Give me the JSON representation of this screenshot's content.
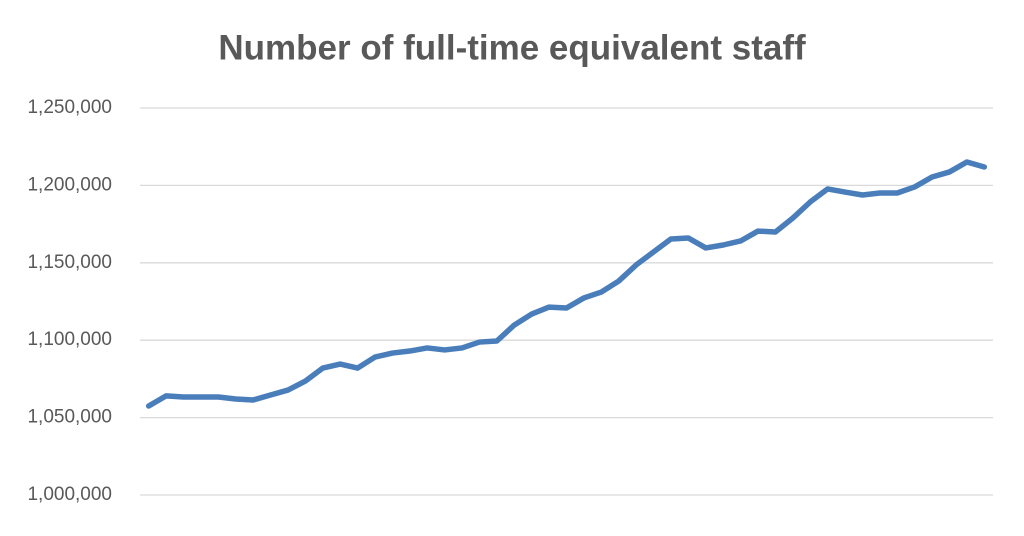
{
  "chart_data": {
    "type": "line",
    "title": "Number of full-time equivalent staff",
    "categories": [
      null,
      null,
      null,
      null,
      null,
      null,
      null,
      null,
      null,
      null,
      null,
      null,
      null,
      null,
      null,
      null,
      null,
      null,
      null,
      null,
      null,
      null,
      null,
      null,
      null,
      null,
      null,
      null,
      null,
      null,
      null,
      null,
      null,
      null,
      null,
      null,
      null,
      null,
      null,
      null,
      null,
      null,
      null,
      null,
      null,
      null,
      null,
      null,
      null
    ],
    "series": [
      {
        "color": "#4a7ebb",
        "values": [
          1057500,
          1064000,
          1063300,
          1063300,
          1063300,
          1062000,
          1061400,
          1064600,
          1067800,
          1073600,
          1082000,
          1084600,
          1082000,
          1089100,
          1091700,
          1093000,
          1095000,
          1093700,
          1095000,
          1098800,
          1099500,
          1109800,
          1116900,
          1121400,
          1120800,
          1127300,
          1131100,
          1138200,
          1148600,
          1157000,
          1165400,
          1166000,
          1159600,
          1161500,
          1164100,
          1170500,
          1169900,
          1178900,
          1189300,
          1197700,
          1195700,
          1193800,
          1195100,
          1195100,
          1199000,
          1205400,
          1208700,
          1215100,
          1211900
        ]
      }
    ],
    "ylim": [
      1000000,
      1250000
    ],
    "yticks": [
      {
        "value": 1000000,
        "label": "1,000,000"
      },
      {
        "value": 1050000,
        "label": "1,050,000"
      },
      {
        "value": 1100000,
        "label": "1,100,000"
      },
      {
        "value": 1150000,
        "label": "1,150,000"
      },
      {
        "value": 1200000,
        "label": "1,200,000"
      },
      {
        "value": 1250000,
        "label": "1,250,000"
      }
    ],
    "grid": true
  }
}
